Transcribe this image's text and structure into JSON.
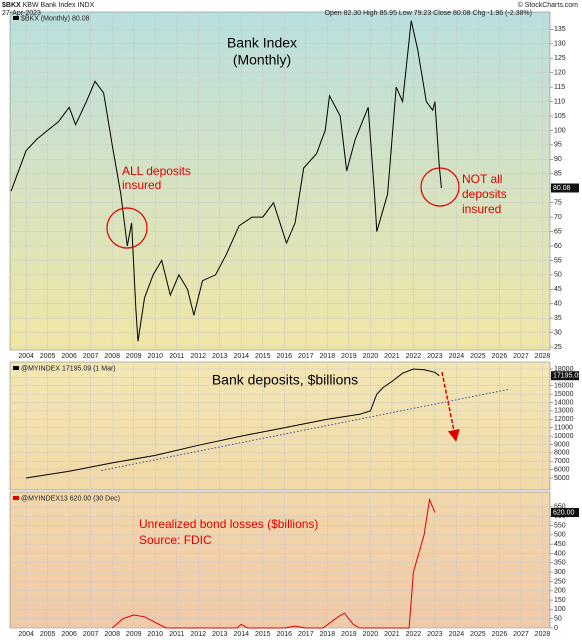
{
  "header": {
    "symbol": "$BKX",
    "name": "KBW Bank Index",
    "exchange": "INDX",
    "date": "27-Apr-2023",
    "quote": "Open 82.30 High 85.95 Low 79.23 Close 80.08 Chg -1.96 (-2.38%)",
    "source": "© StockCharts.com"
  },
  "chart_data": [
    {
      "type": "line",
      "title": [
        "Bank Index",
        "(Monthly)"
      ],
      "legend": "$BKX (Monthly) 80.08",
      "last_value_label": "80.08",
      "xlim": [
        2003.25,
        2028.35
      ],
      "xticks": [
        2004,
        2005,
        2006,
        2007,
        2008,
        2009,
        2010,
        2011,
        2012,
        2013,
        2014,
        2015,
        2016,
        2017,
        2018,
        2019,
        2020,
        2021,
        2022,
        2023,
        2024,
        2025,
        2026,
        2027,
        2028
      ],
      "show_xtick_labels": true,
      "ylim": [
        24,
        141
      ],
      "yticks": [
        25,
        30,
        35,
        40,
        45,
        50,
        55,
        60,
        65,
        70,
        75,
        80,
        85,
        90,
        95,
        100,
        105,
        110,
        115,
        120,
        125,
        130,
        135
      ],
      "grid": true,
      "series": [
        {
          "color": "#000000",
          "x": [
            2003.3,
            2004,
            2004.5,
            2005,
            2005.5,
            2006,
            2006.3,
            2006.8,
            2007.2,
            2007.6,
            2008,
            2008.4,
            2008.7,
            2008.9,
            2009.1,
            2009.2,
            2009.5,
            2009.9,
            2010.3,
            2010.7,
            2011.1,
            2011.5,
            2011.8,
            2012.2,
            2012.8,
            2013.3,
            2013.9,
            2014.5,
            2015,
            2015.5,
            2016.1,
            2016.5,
            2016.9,
            2017.5,
            2017.9,
            2018.1,
            2018.6,
            2018.9,
            2019.3,
            2019.9,
            2020.2,
            2020.3,
            2020.8,
            2021.2,
            2021.5,
            2021.9,
            2022.2,
            2022.6,
            2022.9,
            2023,
            2023.2,
            2023.3
          ],
          "values": [
            79,
            93,
            97,
            100,
            103,
            108,
            102,
            110,
            117,
            113,
            95,
            78,
            60,
            68,
            38,
            27,
            42,
            50,
            55,
            43,
            50,
            45,
            36,
            48,
            50,
            57,
            67,
            70,
            70,
            75,
            61,
            68,
            87,
            92,
            100,
            112,
            105,
            86,
            97,
            108,
            77,
            65,
            78,
            115,
            110,
            138,
            128,
            110,
            107,
            110,
            88,
            80.08
          ]
        }
      ],
      "annotations": [
        {
          "lines": [
            "ALL deposits",
            "insured"
          ],
          "color": "#e00000"
        },
        {
          "lines": [
            "NOT all",
            "deposits",
            "insured"
          ],
          "color": "#e00000"
        }
      ]
    },
    {
      "type": "line",
      "title": [
        "Bank deposits, $billions"
      ],
      "legend": "@MYINDEX 17195.09 (1 Mar)",
      "last_value_label": "17195.09",
      "xlim": [
        2003.25,
        2028.35
      ],
      "xticks": [
        2004,
        2005,
        2006,
        2007,
        2008,
        2009,
        2010,
        2011,
        2012,
        2013,
        2014,
        2015,
        2016,
        2017,
        2018,
        2019,
        2020,
        2021,
        2022,
        2023,
        2024,
        2025,
        2026,
        2027,
        2028
      ],
      "show_xtick_labels": false,
      "ylim": [
        3570,
        18830
      ],
      "yticks": [
        5000,
        6000,
        7000,
        8000,
        9000,
        10000,
        11000,
        12000,
        13000,
        14000,
        15000,
        16000,
        17000,
        18000
      ],
      "grid": true,
      "series": [
        {
          "color": "#000000",
          "x": [
            2004,
            2006,
            2008,
            2010,
            2012,
            2014,
            2016,
            2018,
            2019.5,
            2020,
            2020.3,
            2020.6,
            2021,
            2021.5,
            2022,
            2022.5,
            2023,
            2023.2
          ],
          "values": [
            5000,
            5800,
            6800,
            7700,
            8900,
            10000,
            11000,
            12000,
            12600,
            13000,
            15000,
            15800,
            16500,
            17500,
            18000,
            17900,
            17600,
            17195.09
          ]
        },
        {
          "color": "#3a4a9a",
          "dashed": true,
          "x": [
            2007.5,
            2026.5
          ],
          "values": [
            5900,
            15600
          ]
        }
      ],
      "annotations": []
    },
    {
      "type": "line",
      "title": [],
      "legend": "@MYINDEX13 620.00 (30 Dec)",
      "last_value_label": "620.00",
      "xlim": [
        2003.25,
        2028.35
      ],
      "xticks": [
        2004,
        2005,
        2006,
        2007,
        2008,
        2009,
        2010,
        2011,
        2012,
        2013,
        2014,
        2015,
        2016,
        2017,
        2018,
        2019,
        2020,
        2021,
        2022,
        2023,
        2024,
        2025,
        2026,
        2027,
        2028
      ],
      "show_xtick_labels": true,
      "ylim": [
        0,
        730
      ],
      "yticks": [
        0,
        50,
        100,
        150,
        200,
        250,
        300,
        350,
        400,
        450,
        500,
        550,
        600,
        650
      ],
      "grid": true,
      "series": [
        {
          "color": "#e00000",
          "x": [
            2008,
            2008.5,
            2009,
            2009.5,
            2010,
            2010.5,
            2013.8,
            2014,
            2014.3,
            2016,
            2016.5,
            2017,
            2017.8,
            2018.5,
            2018.8,
            2019.2,
            2019.5,
            2021.8,
            2022,
            2022.5,
            2022.75,
            2023
          ],
          "values": [
            0,
            50,
            70,
            60,
            30,
            0,
            0,
            20,
            0,
            0,
            10,
            0,
            0,
            60,
            80,
            20,
            0,
            0,
            300,
            500,
            690,
            620
          ]
        }
      ],
      "annotations": [
        {
          "lines": [
            "Unrealized bond losses ($billions)",
            "Source: FDIC"
          ],
          "color": "#e00000"
        }
      ]
    }
  ]
}
